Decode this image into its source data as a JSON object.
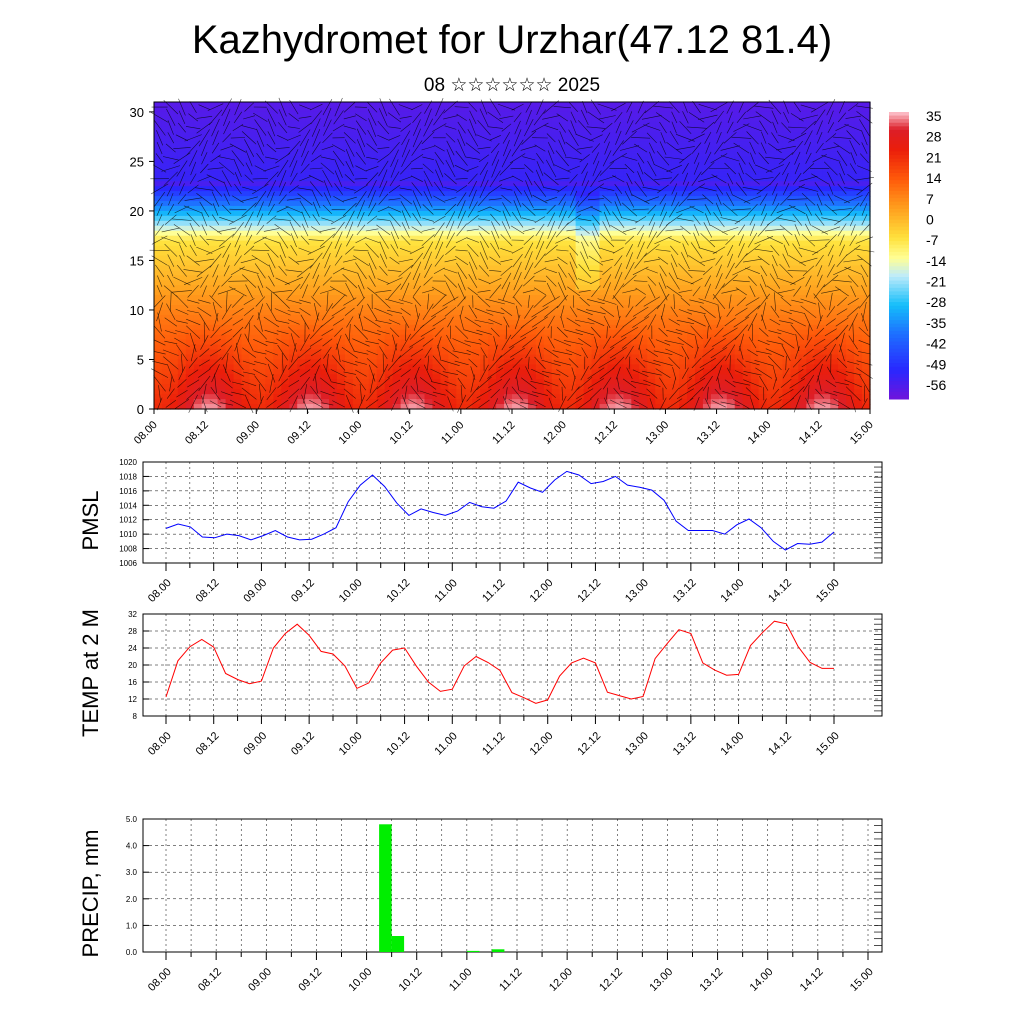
{
  "header": {
    "title": "Kazhydromet for Urzhar(47.12 81.4)",
    "subtitle": "08 ☆☆☆☆☆☆ 2025"
  },
  "chart_data": [
    {
      "type": "heatmap",
      "title": "",
      "xlabel": "",
      "ylabel": "",
      "x_tick_labels": [
        "08.00",
        "08.12",
        "09.00",
        "09.12",
        "10.00",
        "10.12",
        "11.00",
        "11.12",
        "12.00",
        "12.12",
        "13.00",
        "13.12",
        "14.00",
        "14.12",
        "15.00"
      ],
      "y_ticks": [
        0,
        5,
        10,
        15,
        20,
        25,
        30
      ],
      "ylim": [
        0,
        31
      ],
      "colorbar": {
        "labels": [
          35,
          28,
          21,
          14,
          7,
          0,
          -7,
          -14,
          -21,
          -28,
          -35,
          -42,
          -49,
          -56
        ],
        "range": [
          -60,
          38
        ]
      },
      "overlay": "wind-vectors"
    },
    {
      "type": "line",
      "ylabel": "PMSL",
      "ylim": [
        1006,
        1020
      ],
      "y_ticks": [
        1006,
        1008,
        1010,
        1012,
        1014,
        1016,
        1018,
        1020
      ],
      "x_tick_labels": [
        "08.00",
        "08.12",
        "09.00",
        "09.12",
        "10.00",
        "10.12",
        "11.00",
        "11.12",
        "12.00",
        "12.12",
        "13.00",
        "13.12",
        "14.00",
        "14.12",
        "15.00"
      ],
      "color": "#0000ff",
      "values": [
        1010.8,
        1011.4,
        1011.0,
        1009.6,
        1009.5,
        1010.0,
        1009.8,
        1009.2,
        1009.8,
        1010.5,
        1009.6,
        1009.2,
        1009.3,
        1010.0,
        1010.9,
        1014.5,
        1016.8,
        1018.2,
        1016.6,
        1014.3,
        1012.6,
        1013.5,
        1013.0,
        1012.6,
        1013.2,
        1014.4,
        1013.8,
        1013.6,
        1014.6,
        1017.2,
        1016.4,
        1015.8,
        1017.5,
        1018.7,
        1018.2,
        1017.0,
        1017.3,
        1018.0,
        1016.8,
        1016.5,
        1016.1,
        1014.7,
        1011.8,
        1010.5,
        1010.5,
        1010.5,
        1010.0,
        1011.3,
        1012.1,
        1010.9,
        1009.0,
        1007.8,
        1008.7,
        1008.6,
        1008.9,
        1010.3
      ]
    },
    {
      "type": "line",
      "ylabel": "TEMP at 2 M",
      "ylim": [
        8,
        32
      ],
      "y_ticks": [
        8,
        12,
        16,
        20,
        24,
        28,
        32
      ],
      "x_tick_labels": [
        "08.00",
        "08.12",
        "09.00",
        "09.12",
        "10.00",
        "10.12",
        "11.00",
        "11.12",
        "12.00",
        "12.12",
        "13.00",
        "13.12",
        "14.00",
        "14.12",
        "15.00"
      ],
      "color": "#ff0000",
      "values": [
        12.5,
        21.0,
        24.3,
        26.0,
        24.2,
        18.0,
        16.6,
        15.6,
        16.2,
        24.0,
        27.4,
        29.6,
        27.0,
        23.2,
        22.6,
        19.8,
        14.5,
        15.8,
        20.5,
        23.5,
        24.0,
        19.7,
        16.0,
        13.8,
        14.3,
        19.8,
        22.0,
        20.6,
        18.7,
        13.5,
        12.3,
        11.0,
        11.8,
        17.4,
        20.5,
        21.6,
        20.5,
        13.6,
        12.8,
        12.0,
        12.6,
        21.5,
        25.0,
        28.3,
        27.4,
        20.5,
        18.8,
        17.6,
        17.8,
        24.6,
        27.6,
        30.3,
        29.7,
        24.3,
        20.6,
        19.2,
        19.2
      ]
    },
    {
      "type": "bar",
      "ylabel": "PRECIP, mm",
      "ylim": [
        0,
        5
      ],
      "y_ticks": [
        "0.0",
        "1.0",
        "2.0",
        "3.0",
        "4.0",
        "5.0"
      ],
      "x_tick_labels": [
        "08.00",
        "08.12",
        "09.00",
        "09.12",
        "10.00",
        "10.12",
        "11.00",
        "11.12",
        "12.00",
        "12.12",
        "13.00",
        "13.12",
        "14.00",
        "14.12",
        "15.00"
      ],
      "color": "#00ee00",
      "bar_hours": 3,
      "bars": [
        {
          "start_hour": 51,
          "value": 4.8
        },
        {
          "start_hour": 54,
          "value": 0.6
        },
        {
          "start_hour": 72,
          "value": 0.04
        },
        {
          "start_hour": 78,
          "value": 0.1
        }
      ]
    }
  ]
}
